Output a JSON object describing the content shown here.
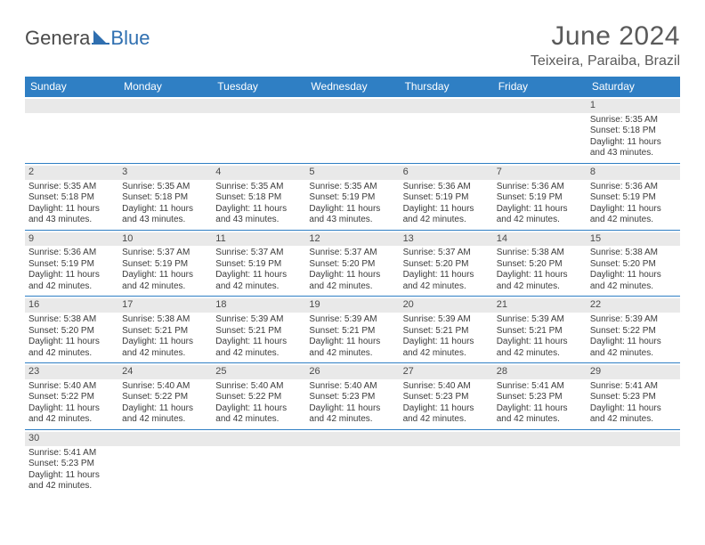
{
  "logo": {
    "part1": "Genera",
    "part2": "Blue"
  },
  "title": "June 2024",
  "location": "Teixeira, Paraiba, Brazil",
  "colors": {
    "header_bg": "#2f7fc4",
    "header_text": "#ffffff",
    "daynum_bg": "#e9e9e9",
    "border": "#2f7fc4",
    "text": "#3b3b3b",
    "title_text": "#5a5a5a",
    "logo_blue": "#2f6fb0"
  },
  "dayNames": [
    "Sunday",
    "Monday",
    "Tuesday",
    "Wednesday",
    "Thursday",
    "Friday",
    "Saturday"
  ],
  "weeks": [
    [
      null,
      null,
      null,
      null,
      null,
      null,
      {
        "n": "1",
        "sr": "5:35 AM",
        "ss": "5:18 PM",
        "dl": "11 hours and 43 minutes."
      }
    ],
    [
      {
        "n": "2",
        "sr": "5:35 AM",
        "ss": "5:18 PM",
        "dl": "11 hours and 43 minutes."
      },
      {
        "n": "3",
        "sr": "5:35 AM",
        "ss": "5:18 PM",
        "dl": "11 hours and 43 minutes."
      },
      {
        "n": "4",
        "sr": "5:35 AM",
        "ss": "5:18 PM",
        "dl": "11 hours and 43 minutes."
      },
      {
        "n": "5",
        "sr": "5:35 AM",
        "ss": "5:19 PM",
        "dl": "11 hours and 43 minutes."
      },
      {
        "n": "6",
        "sr": "5:36 AM",
        "ss": "5:19 PM",
        "dl": "11 hours and 42 minutes."
      },
      {
        "n": "7",
        "sr": "5:36 AM",
        "ss": "5:19 PM",
        "dl": "11 hours and 42 minutes."
      },
      {
        "n": "8",
        "sr": "5:36 AM",
        "ss": "5:19 PM",
        "dl": "11 hours and 42 minutes."
      }
    ],
    [
      {
        "n": "9",
        "sr": "5:36 AM",
        "ss": "5:19 PM",
        "dl": "11 hours and 42 minutes."
      },
      {
        "n": "10",
        "sr": "5:37 AM",
        "ss": "5:19 PM",
        "dl": "11 hours and 42 minutes."
      },
      {
        "n": "11",
        "sr": "5:37 AM",
        "ss": "5:19 PM",
        "dl": "11 hours and 42 minutes."
      },
      {
        "n": "12",
        "sr": "5:37 AM",
        "ss": "5:20 PM",
        "dl": "11 hours and 42 minutes."
      },
      {
        "n": "13",
        "sr": "5:37 AM",
        "ss": "5:20 PM",
        "dl": "11 hours and 42 minutes."
      },
      {
        "n": "14",
        "sr": "5:38 AM",
        "ss": "5:20 PM",
        "dl": "11 hours and 42 minutes."
      },
      {
        "n": "15",
        "sr": "5:38 AM",
        "ss": "5:20 PM",
        "dl": "11 hours and 42 minutes."
      }
    ],
    [
      {
        "n": "16",
        "sr": "5:38 AM",
        "ss": "5:20 PM",
        "dl": "11 hours and 42 minutes."
      },
      {
        "n": "17",
        "sr": "5:38 AM",
        "ss": "5:21 PM",
        "dl": "11 hours and 42 minutes."
      },
      {
        "n": "18",
        "sr": "5:39 AM",
        "ss": "5:21 PM",
        "dl": "11 hours and 42 minutes."
      },
      {
        "n": "19",
        "sr": "5:39 AM",
        "ss": "5:21 PM",
        "dl": "11 hours and 42 minutes."
      },
      {
        "n": "20",
        "sr": "5:39 AM",
        "ss": "5:21 PM",
        "dl": "11 hours and 42 minutes."
      },
      {
        "n": "21",
        "sr": "5:39 AM",
        "ss": "5:21 PM",
        "dl": "11 hours and 42 minutes."
      },
      {
        "n": "22",
        "sr": "5:39 AM",
        "ss": "5:22 PM",
        "dl": "11 hours and 42 minutes."
      }
    ],
    [
      {
        "n": "23",
        "sr": "5:40 AM",
        "ss": "5:22 PM",
        "dl": "11 hours and 42 minutes."
      },
      {
        "n": "24",
        "sr": "5:40 AM",
        "ss": "5:22 PM",
        "dl": "11 hours and 42 minutes."
      },
      {
        "n": "25",
        "sr": "5:40 AM",
        "ss": "5:22 PM",
        "dl": "11 hours and 42 minutes."
      },
      {
        "n": "26",
        "sr": "5:40 AM",
        "ss": "5:23 PM",
        "dl": "11 hours and 42 minutes."
      },
      {
        "n": "27",
        "sr": "5:40 AM",
        "ss": "5:23 PM",
        "dl": "11 hours and 42 minutes."
      },
      {
        "n": "28",
        "sr": "5:41 AM",
        "ss": "5:23 PM",
        "dl": "11 hours and 42 minutes."
      },
      {
        "n": "29",
        "sr": "5:41 AM",
        "ss": "5:23 PM",
        "dl": "11 hours and 42 minutes."
      }
    ],
    [
      {
        "n": "30",
        "sr": "5:41 AM",
        "ss": "5:23 PM",
        "dl": "11 hours and 42 minutes."
      },
      null,
      null,
      null,
      null,
      null,
      null
    ]
  ],
  "labels": {
    "sunrise": "Sunrise: ",
    "sunset": "Sunset: ",
    "daylight": "Daylight: "
  }
}
